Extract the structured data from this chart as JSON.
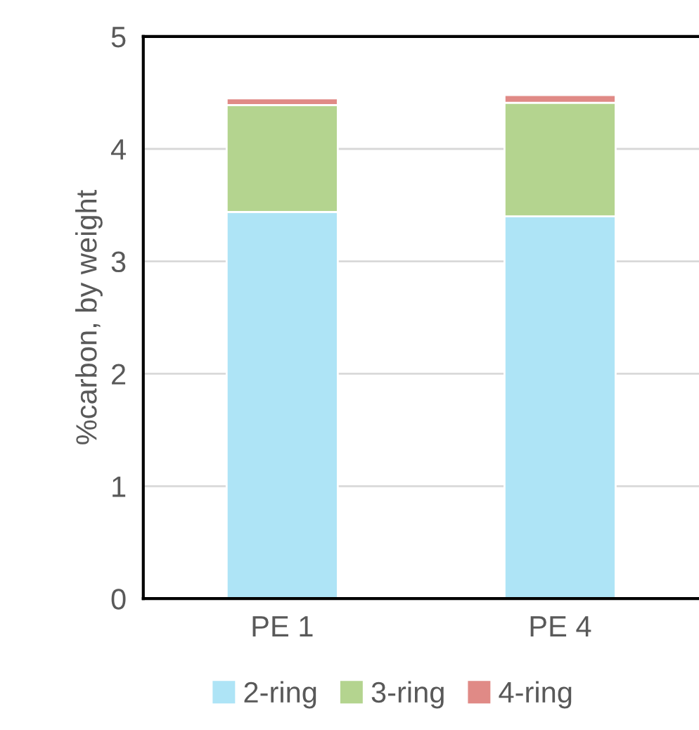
{
  "chart_data": {
    "type": "bar",
    "stacked": true,
    "ylabel": "%carbon, by weight",
    "categories": [
      "PE 1",
      "PE 4"
    ],
    "series": [
      {
        "name": "2-ring",
        "color": "#aee4f6",
        "values": [
          3.44,
          3.4
        ]
      },
      {
        "name": "3-ring",
        "color": "#b4d48f",
        "values": [
          0.95,
          1.01
        ]
      },
      {
        "name": "4-ring",
        "color": "#e08a86",
        "values": [
          0.06,
          0.07
        ]
      }
    ],
    "ylim": [
      0,
      5
    ],
    "yticks": [
      0,
      1,
      2,
      3,
      4,
      5
    ],
    "grid": "y",
    "legend": "bottom"
  }
}
